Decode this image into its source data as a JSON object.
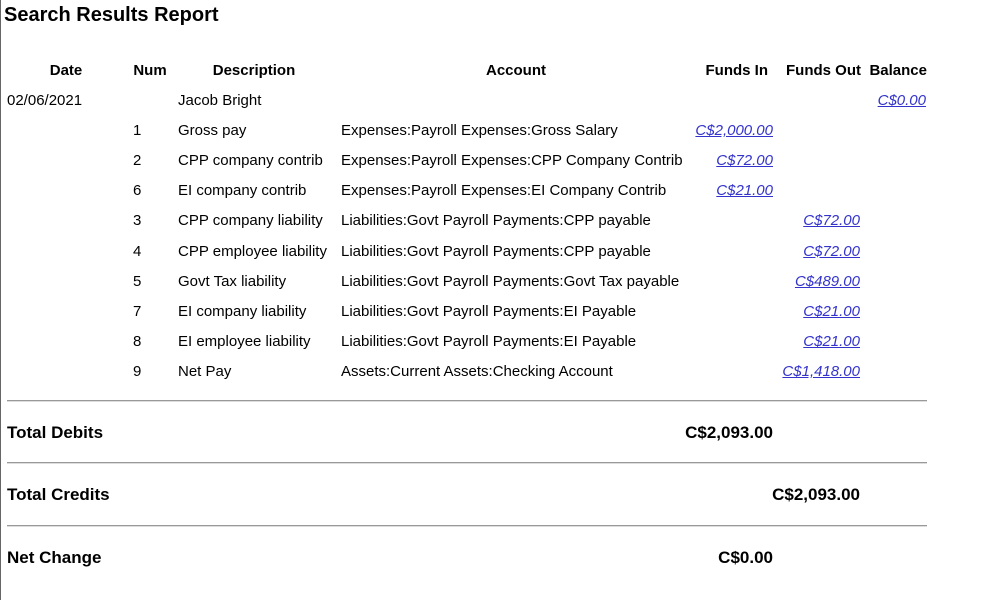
{
  "header": {
    "title": "Search Results Report"
  },
  "table": {
    "columns": [
      "Date",
      "Num",
      "Description",
      "Account",
      "Funds In",
      "Funds Out",
      "Balance"
    ],
    "rows": [
      {
        "date": "02/06/2021",
        "description": "Jacob Bright",
        "balance": "C$0.00"
      },
      {
        "num": "1",
        "description": "Gross pay",
        "account": "Expenses:Payroll Expenses:Gross Salary",
        "funds_in": "C$2,000.00"
      },
      {
        "num": "2",
        "description": "CPP company contrib",
        "account": "Expenses:Payroll Expenses:CPP Company Contrib",
        "funds_in": "C$72.00"
      },
      {
        "num": "6",
        "description": "EI company contrib",
        "account": "Expenses:Payroll Expenses:EI Company Contrib",
        "funds_in": "C$21.00"
      },
      {
        "num": "3",
        "description": "CPP company liability",
        "account": "Liabilities:Govt Payroll Payments:CPP payable",
        "funds_out": "C$72.00"
      },
      {
        "num": "4",
        "description": "CPP employee liability",
        "account": "Liabilities:Govt Payroll Payments:CPP payable",
        "funds_out": "C$72.00"
      },
      {
        "num": "5",
        "description": "Govt Tax liability",
        "account": "Liabilities:Govt Payroll Payments:Govt Tax payable",
        "funds_out": "C$489.00"
      },
      {
        "num": "7",
        "description": "EI company liability",
        "account": "Liabilities:Govt Payroll Payments:EI Payable",
        "funds_out": "C$21.00"
      },
      {
        "num": "8",
        "description": "EI employee liability",
        "account": "Liabilities:Govt Payroll Payments:EI Payable",
        "funds_out": "C$21.00"
      },
      {
        "num": "9",
        "description": "Net Pay",
        "account": "Assets:Current Assets:Checking Account",
        "funds_out": "C$1,418.00"
      }
    ]
  },
  "totals": [
    {
      "label": "Total Debits",
      "funds_in": "C$2,093.00"
    },
    {
      "label": "Total Credits",
      "funds_out": "C$2,093.00"
    },
    {
      "label": "Net Change",
      "funds_in": "C$0.00"
    }
  ]
}
